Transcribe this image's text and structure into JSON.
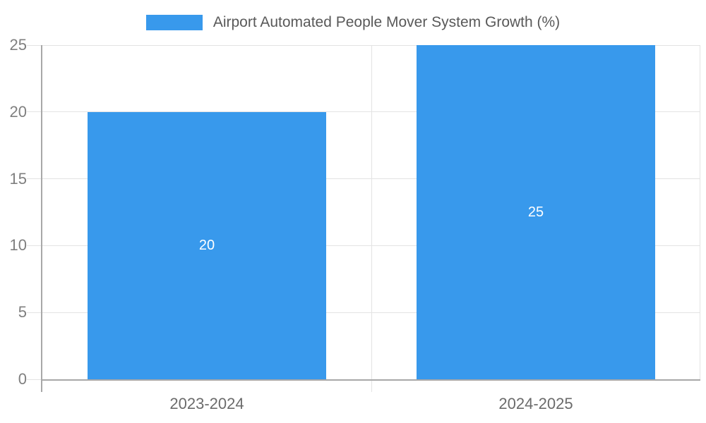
{
  "legend": {
    "label": "Airport Automated People Mover System Growth (%)"
  },
  "colors": {
    "bar": "#3899ec",
    "grid": "#e3e3e3",
    "axis": "#a8a8a8",
    "ytick_text": "#7f7f7f",
    "xtick_text": "#6b6b6b",
    "legend_text": "#595959",
    "bar_value_text": "#ffffff",
    "background": "#ffffff"
  },
  "chart_data": {
    "type": "bar",
    "title": "",
    "legend": "Airport Automated People Mover System Growth (%)",
    "legend_position": "top",
    "categories": [
      "2023-2024",
      "2024-2025"
    ],
    "values": [
      20,
      25
    ],
    "value_labels": [
      "20",
      "25"
    ],
    "xlabel": "",
    "ylabel": "",
    "ylim": [
      0,
      25
    ],
    "yticks": [
      0,
      5,
      10,
      15,
      20,
      25
    ],
    "grid": true
  }
}
